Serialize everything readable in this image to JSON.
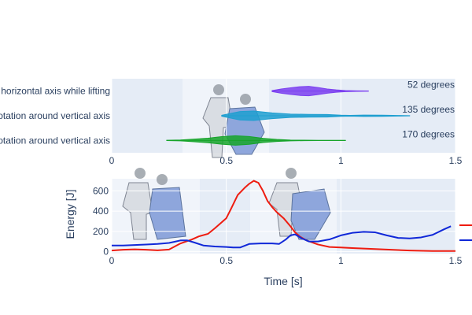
{
  "chart_data": [
    {
      "type": "violin",
      "orientation": "horizontal",
      "xlim": [
        0,
        1.5
      ],
      "x_ticks": [
        "0",
        "0.5",
        "1",
        "1.5"
      ],
      "categories": [
        "Rotation around vertical axis",
        "Rotation around vertical axis",
        "Rotation around horizontal axis while lifting"
      ],
      "violins": [
        {
          "category_index": 0,
          "color": "#16a42a",
          "kde": [
            [
              0.24,
              0.03
            ],
            [
              0.3,
              0.1
            ],
            [
              0.36,
              0.28
            ],
            [
              0.42,
              0.48
            ],
            [
              0.48,
              0.8
            ],
            [
              0.54,
              1.0
            ],
            [
              0.6,
              0.82
            ],
            [
              0.66,
              0.45
            ],
            [
              0.72,
              0.22
            ],
            [
              0.78,
              0.08
            ],
            [
              0.84,
              0.05
            ],
            [
              0.9,
              0.02
            ],
            [
              0.99,
              0.02
            ],
            [
              1.02,
              0.02
            ]
          ]
        },
        {
          "category_index": 1,
          "color": "#1f9fd0",
          "kde": [
            [
              0.48,
              0.1
            ],
            [
              0.52,
              0.5
            ],
            [
              0.56,
              0.9
            ],
            [
              0.62,
              1.0
            ],
            [
              0.7,
              0.6
            ],
            [
              0.78,
              0.35
            ],
            [
              0.86,
              0.3
            ],
            [
              0.94,
              0.28
            ],
            [
              1.0,
              0.12
            ],
            [
              1.04,
              0.08
            ],
            [
              1.1,
              0.15
            ],
            [
              1.18,
              0.12
            ],
            [
              1.25,
              0.06
            ],
            [
              1.3,
              0.03
            ]
          ]
        },
        {
          "category_index": 2,
          "color": "#7b3ff0",
          "kde": [
            [
              0.7,
              0.12
            ],
            [
              0.74,
              0.45
            ],
            [
              0.78,
              0.7
            ],
            [
              0.82,
              0.92
            ],
            [
              0.86,
              1.0
            ],
            [
              0.9,
              0.75
            ],
            [
              0.94,
              0.45
            ],
            [
              0.98,
              0.25
            ],
            [
              1.02,
              0.12
            ],
            [
              1.07,
              0.05
            ],
            [
              1.12,
              0.02
            ]
          ]
        }
      ],
      "annotations": [
        "170 degrees",
        "135 degrees",
        "52 degrees"
      ]
    },
    {
      "type": "line",
      "xlabel": "Time [s]",
      "ylabel": "Energy [J]",
      "xlim": [
        0,
        1.5
      ],
      "ylim": [
        -20,
        720
      ],
      "x_ticks": [
        "0",
        "0.5",
        "1",
        "1.5"
      ],
      "y_ticks": [
        "0",
        "200",
        "400",
        "600"
      ],
      "series": [
        {
          "color": "#ee1c10",
          "x": [
            0,
            0.05,
            0.1,
            0.15,
            0.2,
            0.25,
            0.3,
            0.35,
            0.38,
            0.42,
            0.45,
            0.48,
            0.5,
            0.52,
            0.55,
            0.58,
            0.6,
            0.62,
            0.64,
            0.66,
            0.68,
            0.7,
            0.72,
            0.75,
            0.78,
            0.8,
            0.82,
            0.85,
            0.9,
            0.95,
            1.0,
            1.05,
            1.1,
            1.15,
            1.2,
            1.3,
            1.4,
            1.5
          ],
          "y": [
            10,
            18,
            22,
            18,
            12,
            20,
            80,
            120,
            150,
            175,
            230,
            290,
            330,
            420,
            560,
            630,
            670,
            700,
            680,
            600,
            500,
            440,
            390,
            330,
            250,
            190,
            150,
            110,
            70,
            45,
            40,
            35,
            30,
            25,
            20,
            10,
            5,
            5
          ]
        },
        {
          "color": "#1028d8",
          "x": [
            0,
            0.05,
            0.1,
            0.15,
            0.2,
            0.25,
            0.28,
            0.3,
            0.33,
            0.36,
            0.4,
            0.45,
            0.5,
            0.53,
            0.56,
            0.6,
            0.65,
            0.7,
            0.73,
            0.76,
            0.78,
            0.8,
            0.83,
            0.86,
            0.9,
            0.95,
            1.0,
            1.05,
            1.1,
            1.15,
            1.2,
            1.25,
            1.3,
            1.35,
            1.4,
            1.45,
            1.48
          ],
          "y": [
            60,
            60,
            65,
            70,
            75,
            85,
            100,
            110,
            110,
            90,
            60,
            50,
            45,
            40,
            40,
            75,
            80,
            80,
            75,
            120,
            160,
            170,
            130,
            100,
            100,
            120,
            160,
            185,
            195,
            190,
            160,
            135,
            130,
            140,
            165,
            220,
            250
          ]
        }
      ]
    }
  ]
}
